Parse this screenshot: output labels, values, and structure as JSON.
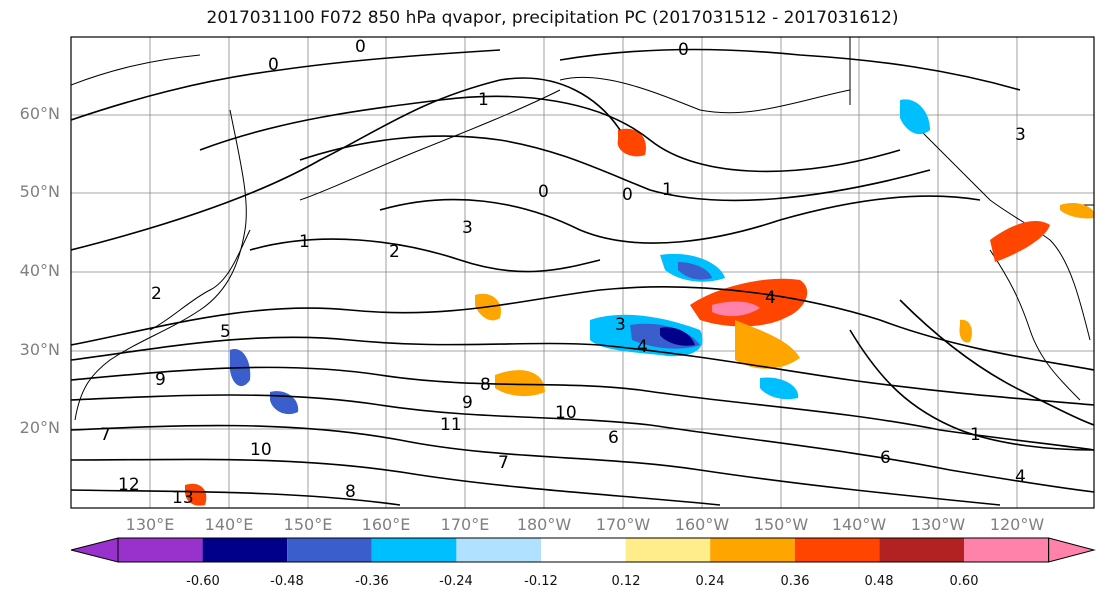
{
  "title": "2017031100 F072 850 hPa qvapor, precipitation PC (2017031512 - 2017031612)",
  "lat_labels": [
    "60°N",
    "50°N",
    "40°N",
    "30°N",
    "20°N"
  ],
  "lon_labels": [
    "130°E",
    "140°E",
    "150°E",
    "160°E",
    "170°E",
    "180°W",
    "170°W",
    "160°W",
    "150°W",
    "140°W",
    "130°W",
    "120°W"
  ],
  "colorbar": {
    "colors": [
      "#9932cc",
      "#00008b",
      "#3a5fcd",
      "#00bfff",
      "#b0e2ff",
      "#ffffff",
      "#ffec8b",
      "#ffa500",
      "#ff4500",
      "#b22222",
      "#ff82ab"
    ],
    "ticks": [
      "-0.60",
      "-0.48",
      "-0.36",
      "-0.24",
      "-0.12",
      "0.12",
      "0.24",
      "0.36",
      "0.48",
      "0.60"
    ]
  },
  "contour_labels": [
    "0",
    "0",
    "0",
    "0",
    "0",
    "1",
    "1",
    "1",
    "1",
    "2",
    "2",
    "3",
    "3",
    "3",
    "4",
    "4",
    "4",
    "5",
    "6",
    "7",
    "8",
    "9",
    "9",
    "10",
    "10",
    "11",
    "12",
    "13",
    "6",
    "7",
    "8"
  ]
}
